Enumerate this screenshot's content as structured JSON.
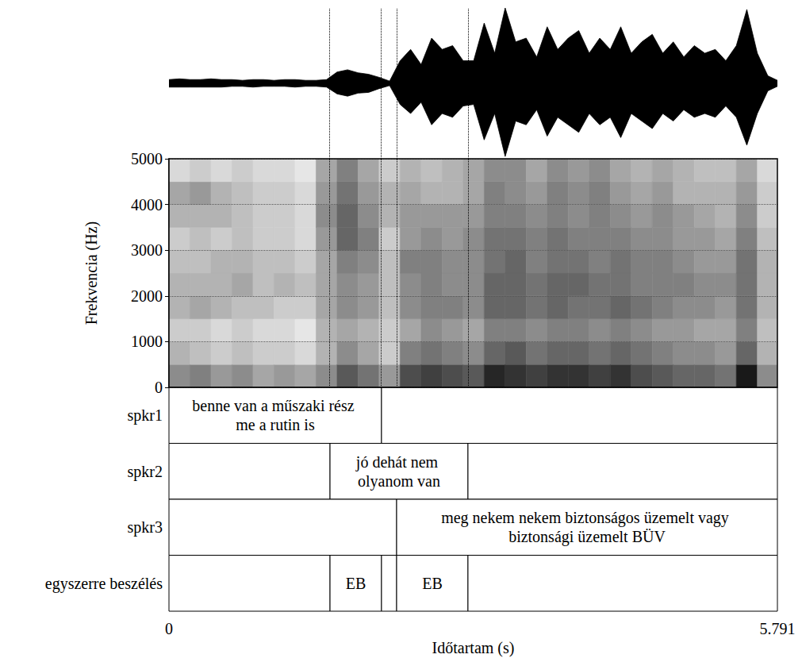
{
  "chart_data": {
    "type": "spectrogram",
    "xlabel": "Időtartam (s)",
    "ylabel": "Frekvencia (Hz)",
    "xlim": [
      0,
      5.791
    ],
    "xticks": [
      0,
      5.791
    ],
    "ylim": [
      0,
      5000
    ],
    "yticks": [
      0,
      1000,
      2000,
      3000,
      4000,
      5000
    ],
    "grid": true,
    "waveform": {
      "color": "#000000",
      "ylim": [
        -1,
        1
      ],
      "t": [
        0,
        0.1,
        0.2,
        0.3,
        0.4,
        0.5,
        0.6,
        0.7,
        0.8,
        0.9,
        1.0,
        1.1,
        1.2,
        1.3,
        1.4,
        1.5,
        1.6,
        1.7,
        1.8,
        1.9,
        2.0,
        2.1,
        2.2,
        2.3,
        2.4,
        2.5,
        2.6,
        2.7,
        2.8,
        2.9,
        3.0,
        3.1,
        3.2,
        3.3,
        3.4,
        3.5,
        3.6,
        3.7,
        3.8,
        3.9,
        4.0,
        4.1,
        4.2,
        4.3,
        4.4,
        4.5,
        4.6,
        4.7,
        4.8,
        4.9,
        5.0,
        5.1,
        5.2,
        5.3,
        5.4,
        5.5,
        5.6,
        5.7,
        5.791
      ],
      "max": [
        0.05,
        0.06,
        0.05,
        0.05,
        0.06,
        0.05,
        0.05,
        0.04,
        0.05,
        0.05,
        0.04,
        0.05,
        0.05,
        0.04,
        0.04,
        0.05,
        0.15,
        0.18,
        0.14,
        0.12,
        0.08,
        0.03,
        0.3,
        0.45,
        0.25,
        0.6,
        0.45,
        0.5,
        0.3,
        0.3,
        0.8,
        0.4,
        1.0,
        0.55,
        0.6,
        0.35,
        0.75,
        0.45,
        0.6,
        0.7,
        0.4,
        0.6,
        0.45,
        0.75,
        0.4,
        0.55,
        0.65,
        0.4,
        0.55,
        0.35,
        0.5,
        0.4,
        0.45,
        0.3,
        0.5,
        0.98,
        0.4,
        0.1,
        0.04
      ],
      "min": [
        -0.05,
        -0.05,
        -0.05,
        -0.05,
        -0.05,
        -0.05,
        -0.04,
        -0.04,
        -0.05,
        -0.04,
        -0.04,
        -0.04,
        -0.05,
        -0.04,
        -0.04,
        -0.05,
        -0.14,
        -0.17,
        -0.13,
        -0.12,
        -0.07,
        -0.03,
        -0.28,
        -0.4,
        -0.25,
        -0.55,
        -0.4,
        -0.45,
        -0.3,
        -0.28,
        -0.75,
        -0.4,
        -0.97,
        -0.5,
        -0.55,
        -0.35,
        -0.7,
        -0.45,
        -0.55,
        -0.65,
        -0.4,
        -0.55,
        -0.45,
        -0.72,
        -0.4,
        -0.5,
        -0.6,
        -0.4,
        -0.5,
        -0.35,
        -0.45,
        -0.4,
        -0.45,
        -0.3,
        -0.45,
        -0.82,
        -0.4,
        -0.1,
        -0.04
      ]
    },
    "spectrogram": {
      "intensity_range": [
        0,
        1
      ],
      "time_edges": [
        0,
        0.2,
        0.4,
        0.6,
        0.8,
        1.0,
        1.2,
        1.4,
        1.6,
        1.8,
        2.0,
        2.2,
        2.4,
        2.6,
        2.8,
        3.0,
        3.2,
        3.4,
        3.6,
        3.8,
        4.0,
        4.2,
        4.4,
        4.6,
        4.8,
        5.0,
        5.2,
        5.4,
        5.6,
        5.791
      ],
      "freq_edges": [
        0,
        500,
        1000,
        1500,
        2000,
        2500,
        3000,
        3500,
        4000,
        4500,
        5000
      ],
      "intensity": [
        [
          0.45,
          0.3,
          0.2,
          0.3,
          0.3,
          0.25,
          0.2,
          0.3,
          0.35,
          0.15
        ],
        [
          0.5,
          0.25,
          0.2,
          0.35,
          0.3,
          0.25,
          0.25,
          0.3,
          0.4,
          0.2
        ],
        [
          0.4,
          0.2,
          0.15,
          0.3,
          0.3,
          0.3,
          0.2,
          0.3,
          0.3,
          0.15
        ],
        [
          0.45,
          0.25,
          0.2,
          0.25,
          0.35,
          0.3,
          0.25,
          0.25,
          0.25,
          0.2
        ],
        [
          0.35,
          0.2,
          0.15,
          0.25,
          0.25,
          0.25,
          0.2,
          0.2,
          0.2,
          0.15
        ],
        [
          0.4,
          0.2,
          0.15,
          0.2,
          0.3,
          0.25,
          0.2,
          0.2,
          0.2,
          0.15
        ],
        [
          0.35,
          0.15,
          0.1,
          0.2,
          0.25,
          0.2,
          0.15,
          0.15,
          0.15,
          0.1
        ],
        [
          0.45,
          0.3,
          0.3,
          0.35,
          0.35,
          0.35,
          0.4,
          0.45,
          0.4,
          0.35
        ],
        [
          0.65,
          0.45,
          0.35,
          0.45,
          0.45,
          0.5,
          0.6,
          0.6,
          0.55,
          0.5
        ],
        [
          0.55,
          0.35,
          0.3,
          0.4,
          0.4,
          0.45,
          0.5,
          0.45,
          0.4,
          0.35
        ],
        [
          0.4,
          0.2,
          0.2,
          0.25,
          0.25,
          0.25,
          0.2,
          0.3,
          0.3,
          0.2
        ],
        [
          0.7,
          0.5,
          0.35,
          0.45,
          0.45,
          0.5,
          0.4,
          0.4,
          0.35,
          0.3
        ],
        [
          0.75,
          0.55,
          0.45,
          0.5,
          0.5,
          0.5,
          0.45,
          0.4,
          0.3,
          0.25
        ],
        [
          0.7,
          0.5,
          0.4,
          0.5,
          0.45,
          0.45,
          0.4,
          0.4,
          0.3,
          0.3
        ],
        [
          0.65,
          0.45,
          0.35,
          0.45,
          0.45,
          0.45,
          0.45,
          0.4,
          0.35,
          0.35
        ],
        [
          0.85,
          0.6,
          0.5,
          0.6,
          0.6,
          0.55,
          0.55,
          0.5,
          0.5,
          0.45
        ],
        [
          0.8,
          0.65,
          0.5,
          0.6,
          0.6,
          0.6,
          0.55,
          0.5,
          0.45,
          0.45
        ],
        [
          0.75,
          0.55,
          0.45,
          0.55,
          0.55,
          0.5,
          0.5,
          0.45,
          0.4,
          0.35
        ],
        [
          0.8,
          0.6,
          0.5,
          0.6,
          0.6,
          0.55,
          0.55,
          0.5,
          0.5,
          0.45
        ],
        [
          0.8,
          0.6,
          0.5,
          0.55,
          0.6,
          0.55,
          0.5,
          0.45,
          0.45,
          0.4
        ],
        [
          0.75,
          0.55,
          0.45,
          0.55,
          0.55,
          0.5,
          0.5,
          0.5,
          0.5,
          0.45
        ],
        [
          0.8,
          0.6,
          0.5,
          0.6,
          0.55,
          0.55,
          0.5,
          0.45,
          0.4,
          0.35
        ],
        [
          0.7,
          0.55,
          0.45,
          0.55,
          0.5,
          0.5,
          0.45,
          0.4,
          0.35,
          0.3
        ],
        [
          0.65,
          0.5,
          0.4,
          0.5,
          0.5,
          0.5,
          0.45,
          0.45,
          0.4,
          0.35
        ],
        [
          0.6,
          0.45,
          0.4,
          0.45,
          0.5,
          0.45,
          0.4,
          0.4,
          0.3,
          0.3
        ],
        [
          0.6,
          0.45,
          0.35,
          0.45,
          0.45,
          0.4,
          0.4,
          0.35,
          0.3,
          0.25
        ],
        [
          0.55,
          0.4,
          0.35,
          0.4,
          0.45,
          0.4,
          0.35,
          0.3,
          0.3,
          0.25
        ],
        [
          0.9,
          0.6,
          0.5,
          0.55,
          0.55,
          0.55,
          0.5,
          0.45,
          0.4,
          0.35
        ],
        [
          0.45,
          0.3,
          0.25,
          0.3,
          0.3,
          0.3,
          0.25,
          0.2,
          0.2,
          0.15
        ]
      ]
    },
    "tiers": [
      {
        "name": "spkr1",
        "boundaries": [
          0,
          2.023,
          5.791
        ],
        "labels": [
          "benne van a műszaki rész me a rutin is",
          null
        ]
      },
      {
        "name": "spkr2",
        "boundaries": [
          0,
          1.533,
          2.846,
          5.791
        ],
        "labels": [
          null,
          "jó dehát nem olyanom van",
          null
        ]
      },
      {
        "name": "spkr3",
        "boundaries": [
          0,
          2.167,
          5.791
        ],
        "labels": [
          null,
          "meg nekem nekem biztonságos üzemelt vagy biztonsági üzemelt BÜV"
        ]
      },
      {
        "name": "egyszerre beszélés",
        "boundaries": [
          0,
          1.533,
          2.023,
          2.167,
          2.846,
          5.791
        ],
        "labels": [
          null,
          "EB",
          null,
          "EB",
          null
        ]
      }
    ]
  }
}
